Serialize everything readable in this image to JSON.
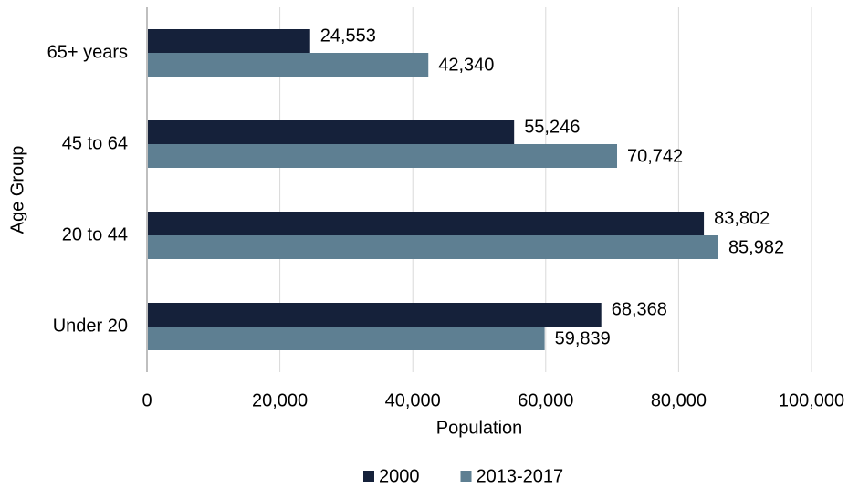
{
  "chart_data": {
    "type": "hbar",
    "x_label": "Population",
    "y_label": "Age Group",
    "categories": [
      "65+ years",
      "45 to 64",
      "20 to 44",
      "Under 20"
    ],
    "series": [
      {
        "name": "2000",
        "color": "#15213a",
        "values": [
          24553,
          55246,
          83802,
          68368
        ],
        "value_labels": [
          "24,553",
          "55,246",
          "83,802",
          "68,368"
        ]
      },
      {
        "name": "2013-2017",
        "color": "#5e7f92",
        "values": [
          42340,
          70742,
          85982,
          59839
        ],
        "value_labels": [
          "42,340",
          "70,742",
          "85,982",
          "59,839"
        ]
      }
    ],
    "xlim": [
      0,
      100000
    ],
    "xticks": [
      0,
      {
        "value": 20000,
        "label": "20,000"
      },
      {
        "value": 40000,
        "label": "40,000"
      },
      {
        "value": 60000,
        "label": "60,000"
      },
      {
        "value": 80000,
        "label": "80,000"
      },
      {
        "value": 100000,
        "label": "100,000"
      }
    ],
    "grid": true,
    "legend": "bottom"
  }
}
